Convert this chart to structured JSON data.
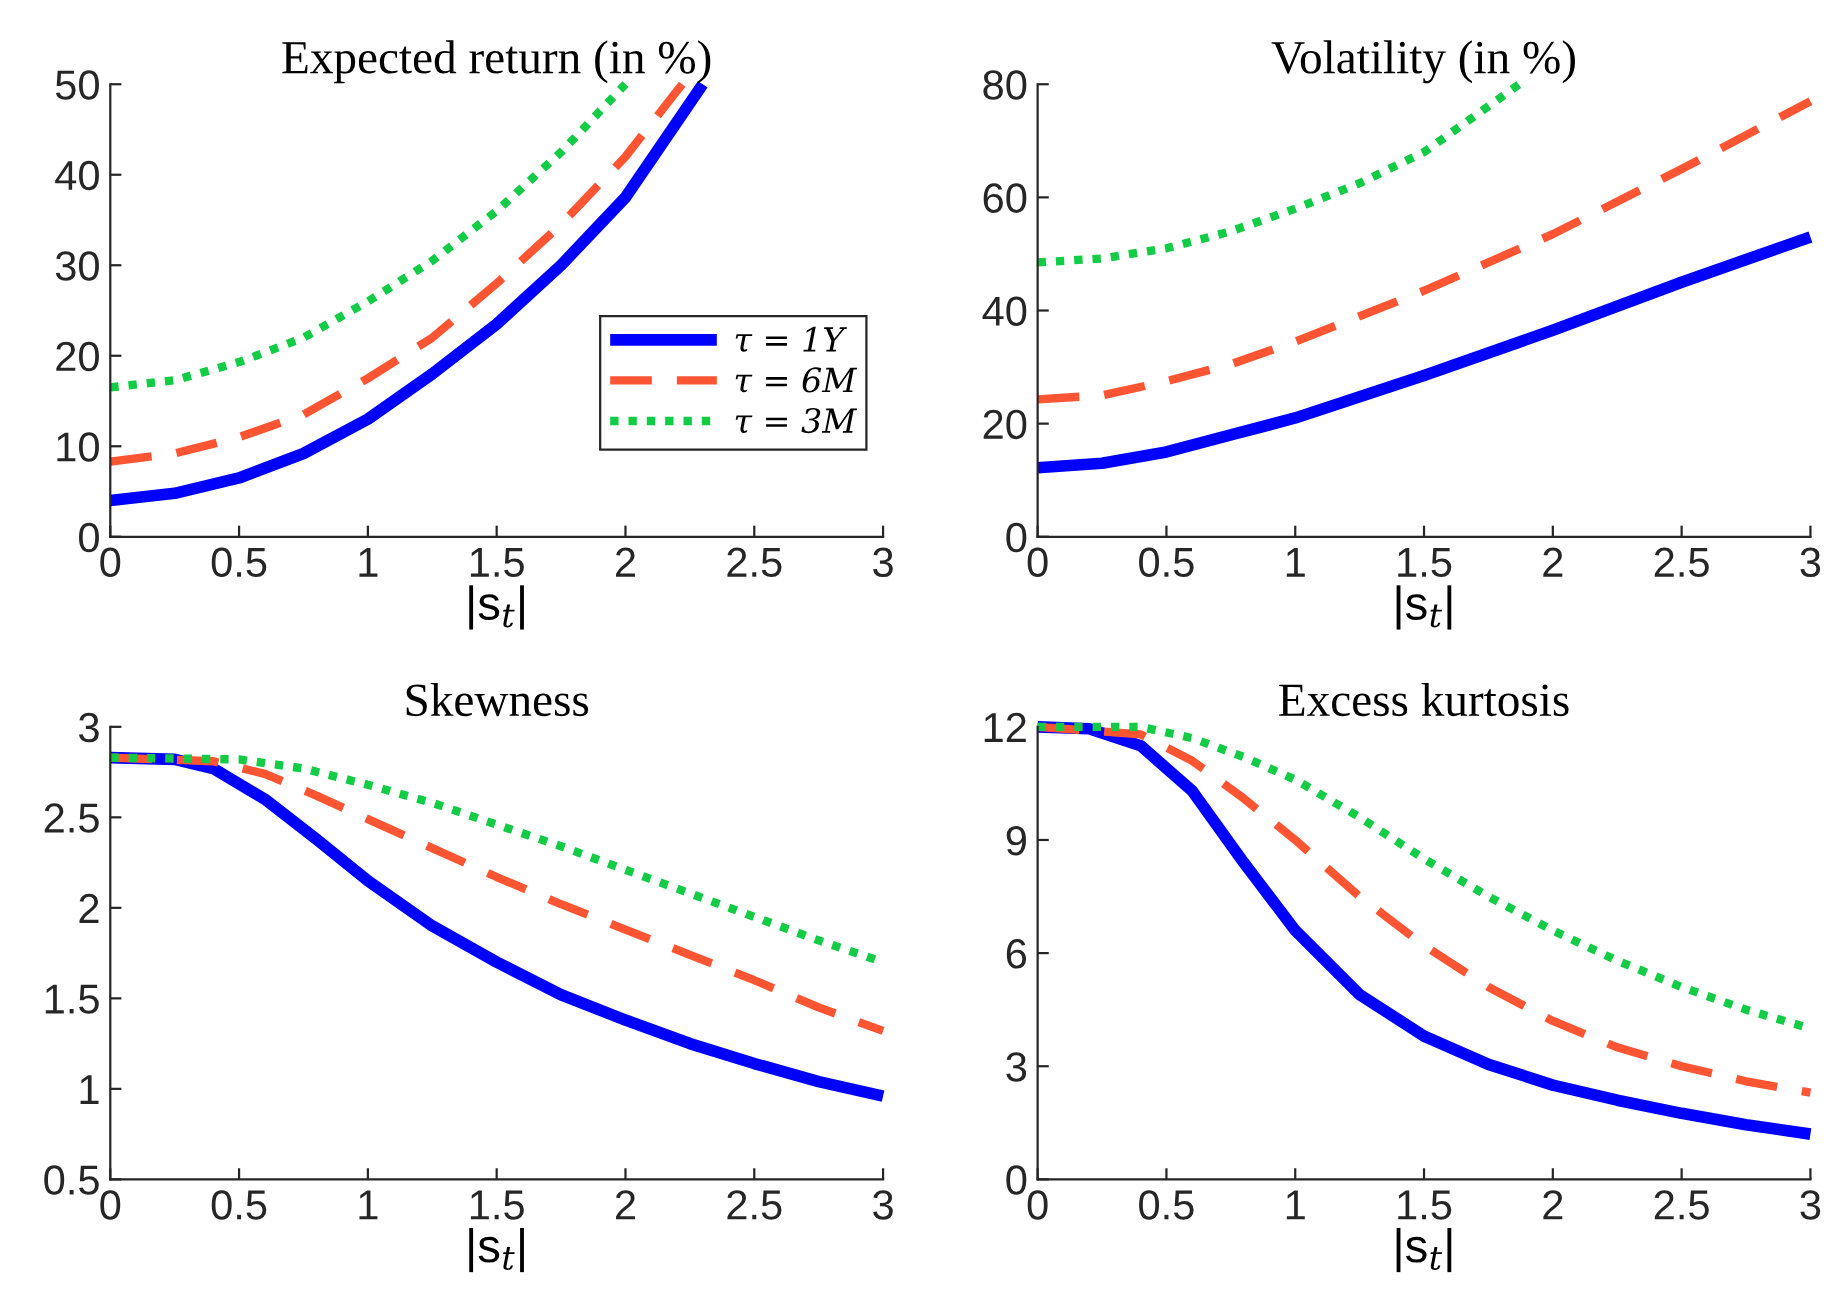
{
  "chart_data": [
    {
      "type": "line",
      "title": "Expected return (in %)",
      "xlabel": "|s$_{t}$|",
      "xlim": [
        0,
        3
      ],
      "xticks": [
        0,
        0.5,
        1,
        1.5,
        2,
        2.5,
        3
      ],
      "ylim": [
        0,
        50
      ],
      "yticks": [
        0,
        10,
        20,
        30,
        40,
        50
      ],
      "grid": false,
      "legend": "right",
      "series": [
        {
          "name": "τ = 1Y",
          "color": "#0000ff",
          "line_style": "solid",
          "x": [
            0,
            0.25,
            0.5,
            0.75,
            1,
            1.25,
            1.5,
            1.75,
            2,
            2.3
          ],
          "values": [
            4,
            4.8,
            6.5,
            9.2,
            13,
            18,
            23.5,
            30,
            37.5,
            50
          ]
        },
        {
          "name": "τ = 6M",
          "color": "#ff5533",
          "line_style": "dashed",
          "x": [
            0,
            0.25,
            0.5,
            0.75,
            1,
            1.25,
            1.5,
            1.75,
            2,
            2.22
          ],
          "values": [
            8.3,
            9.2,
            11,
            13.5,
            17.5,
            22,
            28,
            34.5,
            42,
            50
          ]
        },
        {
          "name": "τ = 3M",
          "color": "#11cc44",
          "line_style": "dotted",
          "x": [
            0,
            0.25,
            0.5,
            0.75,
            1,
            1.25,
            1.5,
            1.75,
            2
          ],
          "values": [
            16.5,
            17.3,
            19.3,
            22,
            26,
            30.5,
            36,
            42.5,
            50
          ]
        }
      ]
    },
    {
      "type": "line",
      "title": "Volatility (in %)",
      "xlabel": "|s$_{t}$|",
      "xlim": [
        0,
        3
      ],
      "xticks": [
        0,
        0.5,
        1,
        1.5,
        2,
        2.5,
        3
      ],
      "ylim": [
        0,
        80
      ],
      "yticks": [
        0,
        20,
        40,
        60,
        80
      ],
      "grid": false,
      "series": [
        {
          "color": "#0000ff",
          "line_style": "solid",
          "x": [
            0,
            0.25,
            0.5,
            0.75,
            1,
            1.5,
            2,
            2.5,
            3
          ],
          "values": [
            12.2,
            13,
            15,
            18,
            21,
            28.5,
            36.5,
            45,
            53
          ]
        },
        {
          "color": "#ff5533",
          "line_style": "dashed",
          "x": [
            0,
            0.25,
            0.5,
            0.75,
            1,
            1.5,
            2,
            2.5,
            3
          ],
          "values": [
            24.3,
            25,
            27.5,
            30.5,
            34.5,
            43.5,
            53.5,
            65,
            77
          ]
        },
        {
          "color": "#11cc44",
          "line_style": "dotted",
          "x": [
            0,
            0.25,
            0.5,
            0.75,
            1,
            1.25,
            1.5,
            1.87
          ],
          "values": [
            48.5,
            49.2,
            51,
            54,
            58,
            62.5,
            68,
            80
          ]
        }
      ]
    },
    {
      "type": "line",
      "title": "Skewness",
      "xlabel": "|s$_{t}$|",
      "xlim": [
        0,
        3
      ],
      "xticks": [
        0,
        0.5,
        1,
        1.5,
        2,
        2.5,
        3
      ],
      "ylim": [
        0.5,
        3
      ],
      "yticks": [
        0.5,
        1,
        1.5,
        2,
        2.5,
        3
      ],
      "grid": false,
      "series": [
        {
          "color": "#0000ff",
          "line_style": "solid",
          "x": [
            0,
            0.25,
            0.4,
            0.6,
            0.8,
            1,
            1.25,
            1.5,
            1.75,
            2,
            2.25,
            2.5,
            2.75,
            3
          ],
          "values": [
            2.83,
            2.82,
            2.77,
            2.6,
            2.38,
            2.15,
            1.9,
            1.7,
            1.52,
            1.38,
            1.25,
            1.14,
            1.04,
            0.96
          ]
        },
        {
          "color": "#ff5533",
          "line_style": "dashed",
          "x": [
            0,
            0.4,
            0.6,
            0.8,
            1,
            1.25,
            1.5,
            1.75,
            2,
            2.25,
            2.5,
            2.75,
            3
          ],
          "values": [
            2.83,
            2.81,
            2.74,
            2.62,
            2.49,
            2.33,
            2.17,
            2.02,
            1.88,
            1.74,
            1.6,
            1.45,
            1.32
          ]
        },
        {
          "color": "#11cc44",
          "line_style": "dotted",
          "x": [
            0,
            0.5,
            0.75,
            1,
            1.25,
            1.5,
            1.75,
            2,
            2.25,
            2.5,
            2.75,
            3
          ],
          "values": [
            2.83,
            2.82,
            2.77,
            2.68,
            2.58,
            2.46,
            2.34,
            2.21,
            2.08,
            1.95,
            1.82,
            1.7
          ]
        }
      ]
    },
    {
      "type": "line",
      "title": "Excess kurtosis",
      "xlabel": "|s$_{t}$|",
      "xlim": [
        0,
        3
      ],
      "xticks": [
        0,
        0.5,
        1,
        1.5,
        2,
        2.5,
        3
      ],
      "ylim": [
        0,
        12
      ],
      "yticks": [
        0,
        3,
        6,
        9,
        12
      ],
      "grid": false,
      "series": [
        {
          "color": "#0000ff",
          "line_style": "solid",
          "x": [
            0,
            0.2,
            0.4,
            0.6,
            0.8,
            1,
            1.25,
            1.5,
            1.75,
            2,
            2.25,
            2.5,
            2.75,
            3
          ],
          "values": [
            12,
            11.95,
            11.5,
            10.3,
            8.4,
            6.6,
            4.9,
            3.8,
            3.05,
            2.5,
            2.1,
            1.75,
            1.45,
            1.2
          ]
        },
        {
          "color": "#ff5533",
          "line_style": "dashed",
          "x": [
            0,
            0.4,
            0.6,
            0.8,
            1,
            1.25,
            1.5,
            1.75,
            2,
            2.25,
            2.5,
            2.75,
            3
          ],
          "values": [
            12,
            11.8,
            11.1,
            10.1,
            9,
            7.5,
            6.2,
            5.1,
            4.2,
            3.5,
            3,
            2.6,
            2.3
          ]
        },
        {
          "color": "#11cc44",
          "line_style": "dotted",
          "x": [
            0,
            0.4,
            0.6,
            0.8,
            1,
            1.25,
            1.5,
            1.75,
            2,
            2.25,
            2.5,
            2.75,
            3
          ],
          "values": [
            12,
            12,
            11.7,
            11.2,
            10.6,
            9.6,
            8.5,
            7.5,
            6.6,
            5.8,
            5.1,
            4.5,
            4
          ]
        }
      ]
    }
  ]
}
